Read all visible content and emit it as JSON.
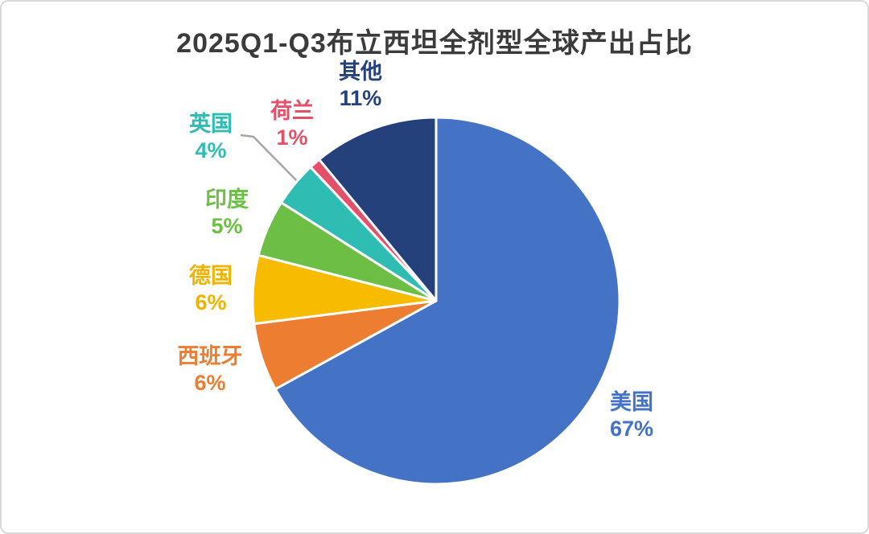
{
  "page": {
    "background": "#FFFFFF",
    "card_border_color": "#D9D9D9"
  },
  "chart_data": {
    "type": "pie",
    "title": "2025Q1-Q3布立西坦全剂型全球产出占比",
    "title_color": "#3B3B3B",
    "start_angle": "top",
    "direction": "clockwise",
    "legend_position": "none",
    "label_style": "outside callouts, text colored to match slice",
    "unit": "%",
    "slices": [
      {
        "key": "usa",
        "label": "美国",
        "value": 67,
        "pct_label": "67%",
        "color": "#4472C4"
      },
      {
        "key": "spain",
        "label": "西班牙",
        "value": 6,
        "pct_label": "6%",
        "color": "#ED7D31"
      },
      {
        "key": "germany",
        "label": "德国",
        "value": 6,
        "pct_label": "6%",
        "color": "#F7BB00"
      },
      {
        "key": "india",
        "label": "印度",
        "value": 5,
        "pct_label": "5%",
        "color": "#6DBE45"
      },
      {
        "key": "uk",
        "label": "英国",
        "value": 4,
        "pct_label": "4%",
        "color": "#2FBDB3"
      },
      {
        "key": "netherlands",
        "label": "荷兰",
        "value": 1,
        "pct_label": "1%",
        "color": "#E4506A"
      },
      {
        "key": "other",
        "label": "其他",
        "value": 11,
        "pct_label": "11%",
        "color": "#25417C"
      }
    ],
    "leader_line": {
      "for": "uk",
      "color": "#A6A6A6"
    }
  }
}
